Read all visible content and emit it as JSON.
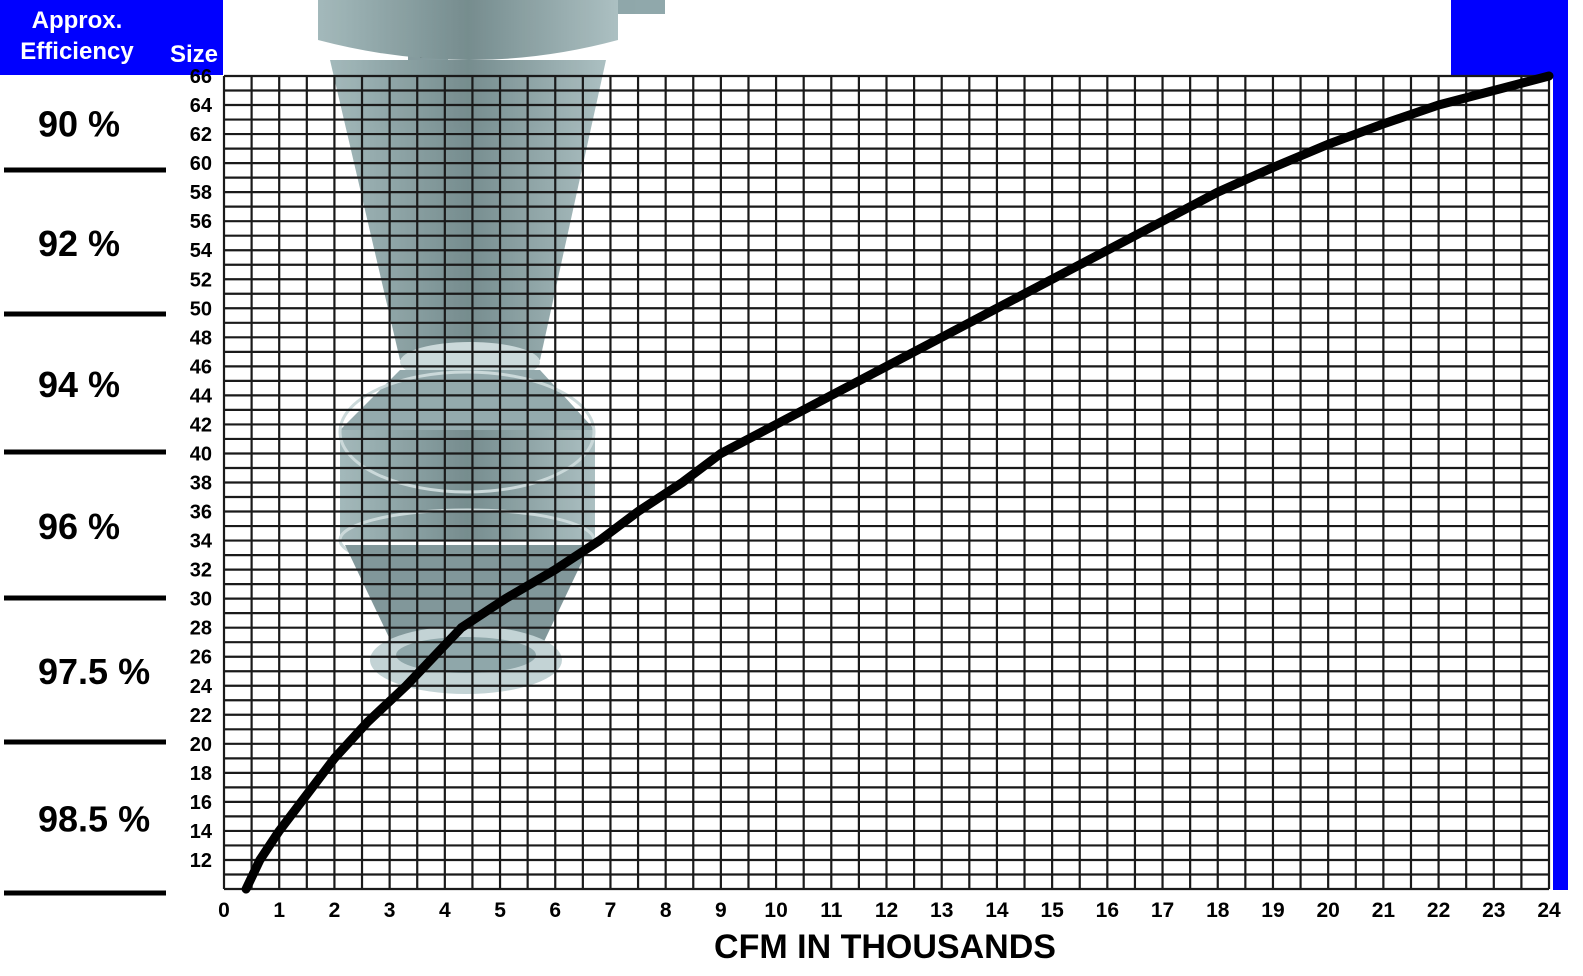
{
  "header": {
    "efficiency_label_line1": "Approx.",
    "efficiency_label_line2": "Efficiency",
    "size_label": "Size"
  },
  "efficiency_bands": [
    {
      "label": "90 %",
      "size_from": 60,
      "size_to": 66
    },
    {
      "label": "92 %",
      "size_from": 50,
      "size_to": 60
    },
    {
      "label": "94 %",
      "size_from": 40,
      "size_to": 50
    },
    {
      "label": "96 %",
      "size_from": 30,
      "size_to": 40
    },
    {
      "label": "97.5 %",
      "size_from": 20,
      "size_to": 30
    },
    {
      "label": "98.5 %",
      "size_from": 10,
      "size_to": 20
    }
  ],
  "colors": {
    "header_blue": "#0000ff",
    "grid": "#1a1a1a",
    "curve": "#000000",
    "cyclone_body": "#8aa3a6",
    "cyclone_shade": "#5f7679",
    "cyclone_light": "#c9d8d9"
  },
  "background_icon": "cyclone-separator-icon",
  "chart_data": {
    "type": "line",
    "xlabel": "CFM IN THOUSANDS",
    "ylabel": "Size",
    "xlim": [
      0,
      24
    ],
    "ylim": [
      10,
      66
    ],
    "x_ticks": [
      0,
      1,
      2,
      3,
      4,
      5,
      6,
      7,
      8,
      9,
      10,
      11,
      12,
      13,
      14,
      15,
      16,
      17,
      18,
      19,
      20,
      21,
      22,
      23,
      24
    ],
    "y_ticks": [
      12,
      14,
      16,
      18,
      20,
      22,
      24,
      26,
      28,
      30,
      32,
      34,
      36,
      38,
      40,
      42,
      44,
      46,
      48,
      50,
      52,
      54,
      56,
      58,
      60,
      62,
      64,
      66
    ],
    "grid": true,
    "series": [
      {
        "x": [
          0.4,
          0.65,
          1.0,
          1.5,
          2.0,
          2.6,
          3.3,
          4.3,
          5.1,
          6.0,
          6.8,
          7.5,
          8.3,
          9.0,
          10.0,
          11.0,
          12.0,
          13.0,
          14.0,
          15.0,
          16.0,
          17.0,
          18.0,
          19.0,
          20.0,
          21.0,
          22.0,
          23.0,
          24.0
        ],
        "y": [
          10,
          12,
          14,
          16.5,
          19,
          21.5,
          24,
          28,
          30,
          32,
          34,
          36,
          38,
          40,
          42,
          44,
          46,
          48,
          50,
          52,
          54,
          56,
          58,
          59.7,
          61.3,
          62.7,
          64,
          65,
          66
        ]
      }
    ]
  }
}
